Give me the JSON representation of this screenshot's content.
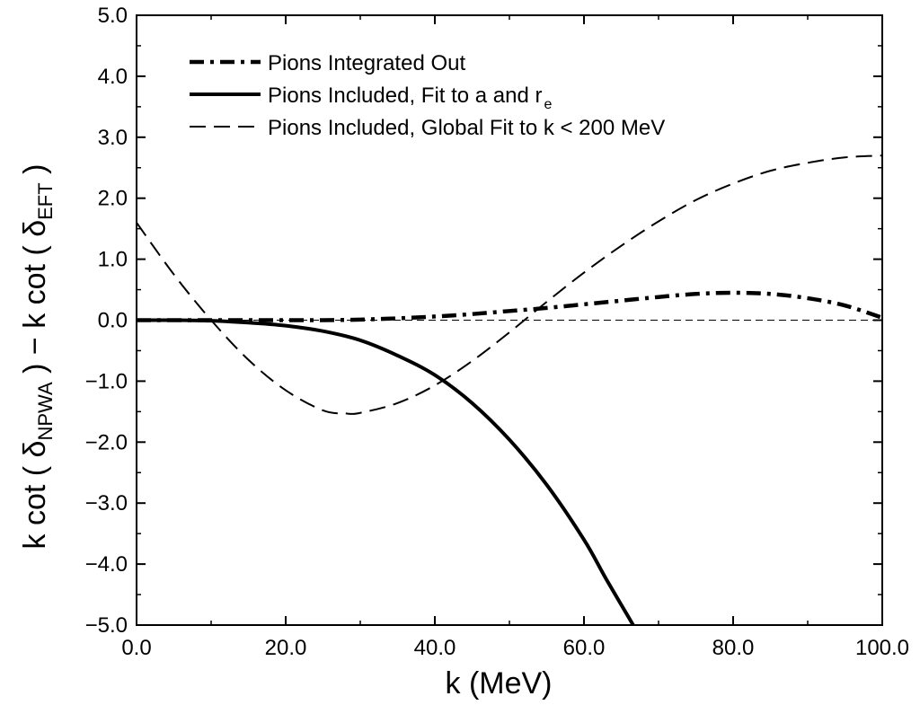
{
  "chart_data": {
    "type": "line",
    "xlabel": "k (MeV)",
    "ylabel": {
      "part1": "k cot ( δ",
      "sub1": "NPWA",
      "part2": " ) − k cot ( δ",
      "sub2": "EFT",
      "part3": " )"
    },
    "xlim": [
      0,
      100
    ],
    "ylim": [
      -5,
      5
    ],
    "xticks": [
      0,
      20,
      40,
      60,
      80,
      100
    ],
    "xtick_labels": [
      "0.0",
      "20.0",
      "40.0",
      "60.0",
      "80.0",
      "100.0"
    ],
    "yticks": [
      -5,
      -4,
      -3,
      -2,
      -1,
      0,
      1,
      2,
      3,
      4,
      5
    ],
    "ytick_labels": [
      "−5.0",
      "−4.0",
      "−3.0",
      "−2.0",
      "−1.0",
      "0.0",
      "1.0",
      "2.0",
      "3.0",
      "4.0",
      "5.0"
    ],
    "grid": false,
    "legend_position": "top-left",
    "reference_line": {
      "y": 0,
      "style": "dashed"
    },
    "series": [
      {
        "name": "Pions Integrated Out",
        "style": "dash-dot",
        "x": [
          0,
          5,
          10,
          15,
          20,
          25,
          30,
          35,
          40,
          45,
          50,
          55,
          60,
          65,
          70,
          75,
          80,
          85,
          90,
          95,
          100
        ],
        "y": [
          0.0,
          0.0,
          0.0,
          0.0,
          0.0,
          0.0,
          0.01,
          0.03,
          0.06,
          0.1,
          0.15,
          0.2,
          0.26,
          0.32,
          0.38,
          0.43,
          0.45,
          0.43,
          0.36,
          0.24,
          0.04
        ]
      },
      {
        "name": "Pions Included, Fit to a and r",
        "name_sub": "e",
        "style": "solid",
        "x": [
          0,
          5,
          10,
          15,
          20,
          25,
          30,
          35,
          40,
          45,
          50,
          55,
          60,
          63,
          66.6
        ],
        "y": [
          0.0,
          0.0,
          -0.01,
          -0.04,
          -0.09,
          -0.18,
          -0.33,
          -0.58,
          -0.9,
          -1.36,
          -1.96,
          -2.7,
          -3.6,
          -4.25,
          -5.0
        ]
      },
      {
        "name": "Pions Included, Global Fit to k < 200 MeV",
        "style": "dashed",
        "x": [
          0,
          5,
          10,
          15,
          20,
          25,
          28,
          30,
          35,
          40,
          45,
          50,
          55,
          60,
          65,
          70,
          75,
          80,
          85,
          90,
          95,
          100
        ],
        "y": [
          1.6,
          0.75,
          0.0,
          -0.65,
          -1.15,
          -1.48,
          -1.53,
          -1.52,
          -1.36,
          -1.07,
          -0.67,
          -0.2,
          0.3,
          0.78,
          1.22,
          1.62,
          1.97,
          2.24,
          2.45,
          2.58,
          2.67,
          2.7
        ]
      }
    ]
  }
}
